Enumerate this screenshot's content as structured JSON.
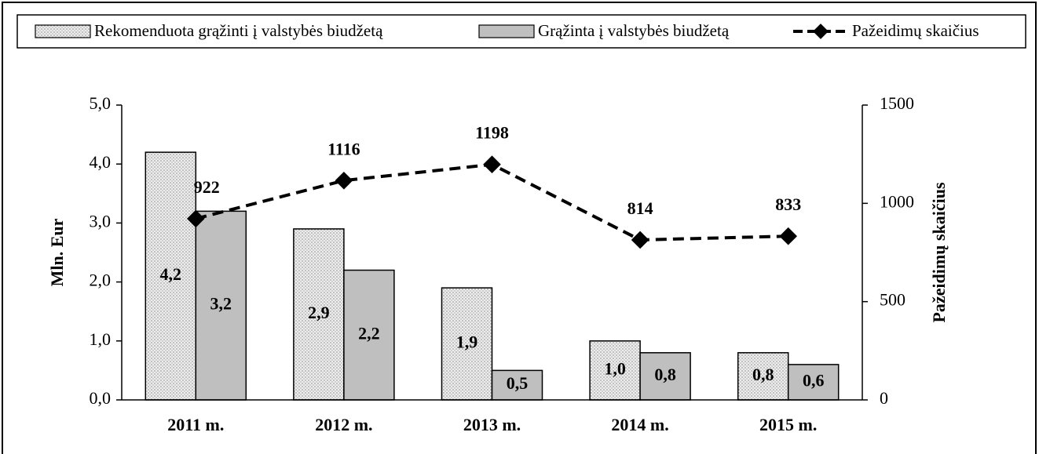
{
  "chart_data": {
    "type": "bar",
    "categories": [
      "2011 m.",
      "2012 m.",
      "2013 m.",
      "2014 m.",
      "2015 m."
    ],
    "series": [
      {
        "name": "Rekomenduota grąžinti į valstybės biudžetą",
        "color": "#eeeeee",
        "values": [
          4.2,
          2.9,
          1.9,
          1.0,
          0.8
        ],
        "value_labels": [
          "4,2",
          "2,9",
          "1,9",
          "1,0",
          "0,8"
        ]
      },
      {
        "name": "Grąžinta į valstybės biudžetą",
        "color": "#bfbfbf",
        "values": [
          3.2,
          2.2,
          0.5,
          0.8,
          0.6
        ],
        "value_labels": [
          "3,2",
          "2,2",
          "0,5",
          "0,8",
          "0,6"
        ]
      },
      {
        "name": "Pažeidimų skaičius",
        "type": "line",
        "color": "#000000",
        "axis": "y2",
        "values": [
          922,
          1116,
          1198,
          814,
          833
        ]
      }
    ],
    "y_label": "Mln. Eur",
    "y2_label": "Pažeidimų skaičius",
    "ylim": [
      0,
      5
    ],
    "yticks": [
      {
        "value": 0,
        "label": "0,0"
      },
      {
        "value": 1,
        "label": "1,0"
      },
      {
        "value": 2,
        "label": "2,0"
      },
      {
        "value": 3,
        "label": "3,0"
      },
      {
        "value": 4,
        "label": "4,0"
      },
      {
        "value": 5,
        "label": "5,0"
      }
    ],
    "y2lim": [
      0,
      1500
    ],
    "y2ticks": [
      0,
      500,
      1000,
      1500
    ],
    "grid": false,
    "legend": "top"
  }
}
